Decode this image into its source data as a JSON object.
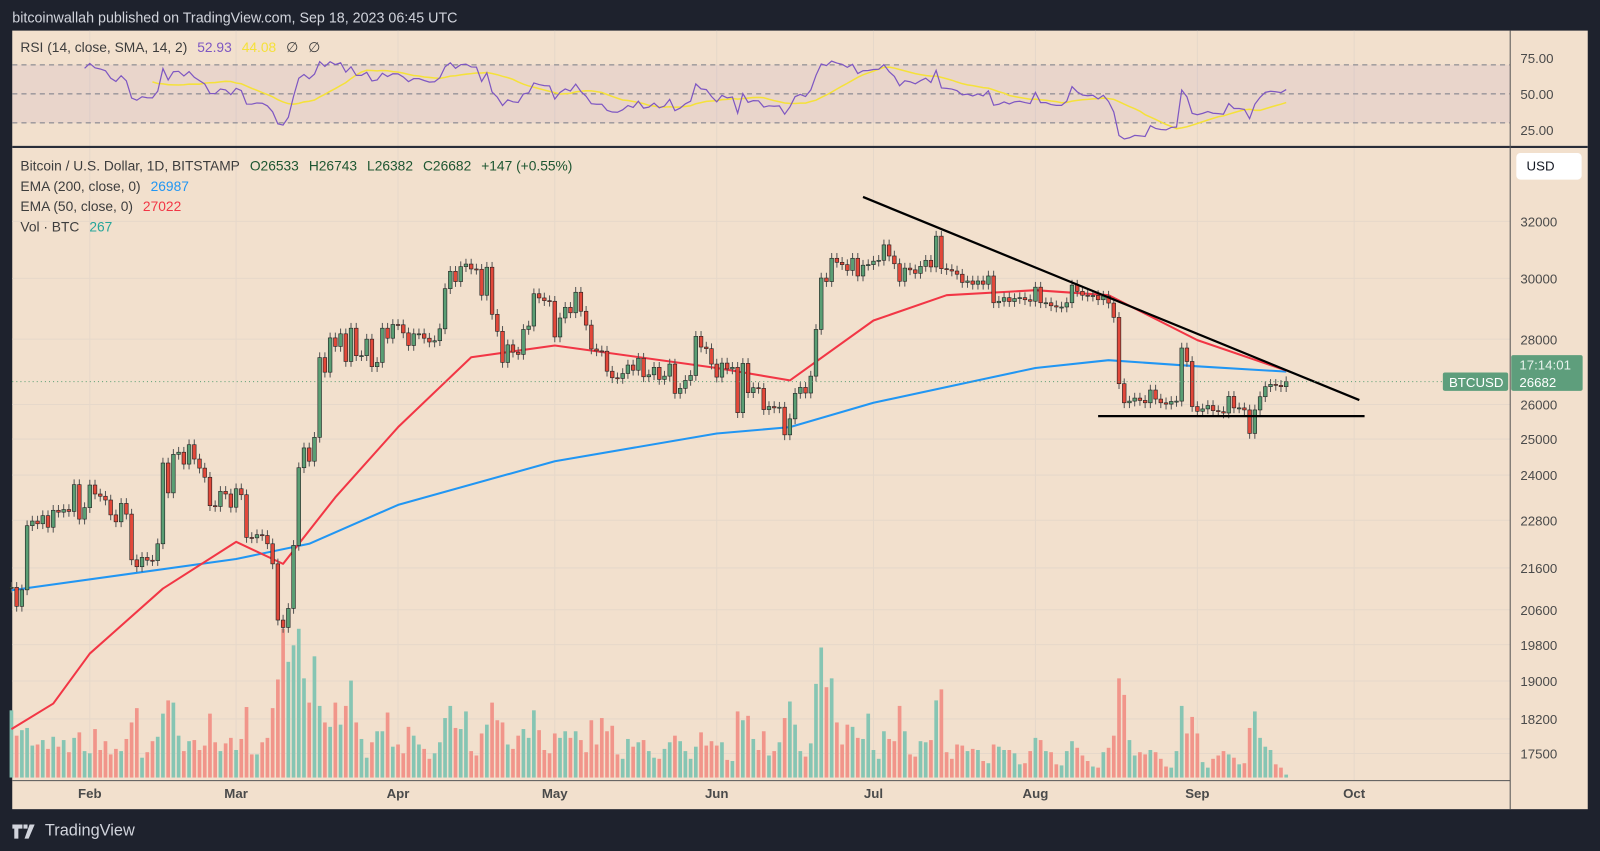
{
  "header": {
    "title": "bitcoinwallah published on TradingView.com, Sep 18, 2023 06:45 UTC"
  },
  "footer": {
    "brand": "TradingView"
  },
  "rsi_legend": {
    "label": "RSI (14, close, SMA, 14, 2)",
    "rsi": "52.93",
    "sma": "44.08",
    "extra1": "∅",
    "extra2": "∅"
  },
  "main_legend": {
    "symbol": "Bitcoin / U.S. Dollar, 1D, BITSTAMP",
    "open": "O26533",
    "high": "H26743",
    "low": "L26382",
    "close": "C26682",
    "change": "+147 (+0.55%)",
    "ema200_label": "EMA (200, close, 0)",
    "ema200_value": "26987",
    "ema50_label": "EMA (50, close, 0)",
    "ema50_value": "27022",
    "vol_label": "Vol · BTC",
    "vol_value": "267"
  },
  "currency_button": "USD",
  "price_label": {
    "symbol": "BTCUSD",
    "price": "26682",
    "countdown": "17:14:01"
  },
  "colors": {
    "background": "#f2e0cd",
    "up": "#5a9e74",
    "down": "#e2483a",
    "vol_up": "#86c5b3",
    "vol_down": "#f1958a",
    "ema200": "#2196f3",
    "ema50": "#f23645",
    "rsi": "#7e57c2",
    "rsi_sma": "#f5e13a",
    "trendline": "#000000"
  },
  "chart_data": {
    "type": "candlestick",
    "interval": "1D",
    "first_date": "2023-01-17",
    "y_scale": "log",
    "y_ticks": [
      32000,
      30000,
      28000,
      26000,
      25000,
      24000,
      22800,
      21600,
      20600,
      19800,
      19000,
      18200,
      17500
    ],
    "x_ticks": [
      {
        "label": "Feb",
        "date": "2023-02-01"
      },
      {
        "label": "Mar",
        "date": "2023-03-01"
      },
      {
        "label": "Apr",
        "date": "2023-04-01"
      },
      {
        "label": "May",
        "date": "2023-05-01"
      },
      {
        "label": "Jun",
        "date": "2023-06-01"
      },
      {
        "label": "Jul",
        "date": "2023-07-01"
      },
      {
        "label": "Aug",
        "date": "2023-08-01"
      },
      {
        "label": "Sep",
        "date": "2023-09-01"
      },
      {
        "label": "Oct",
        "date": "2023-10-01"
      }
    ],
    "rsi_ticks": [
      75,
      50,
      25
    ],
    "rsi_band": [
      30,
      70
    ],
    "close": [
      21130,
      20680,
      21070,
      22660,
      22780,
      22710,
      22920,
      22620,
      23060,
      23010,
      23080,
      23030,
      23740,
      22830,
      23130,
      23730,
      23490,
      23430,
      23330,
      22940,
      22760,
      23240,
      22960,
      21800,
      21630,
      21860,
      21790,
      21780,
      22200,
      24330,
      23520,
      24570,
      24630,
      24300,
      24840,
      24440,
      24190,
      23940,
      23180,
      23160,
      23560,
      23490,
      23140,
      23630,
      23470,
      22360,
      22350,
      22430,
      22410,
      22200,
      21700,
      20360,
      20190,
      20630,
      22160,
      24200,
      24750,
      24380,
      25050,
      27420,
      26970,
      28040,
      27770,
      28170,
      27300,
      28350,
      27480,
      27480,
      28000,
      27140,
      27270,
      28350,
      28030,
      28470,
      28460,
      28200,
      27800,
      28170,
      28170,
      28030,
      27910,
      27950,
      28330,
      29650,
      30240,
      29890,
      30400,
      30490,
      30320,
      30310,
      29430,
      30380,
      28800,
      28250,
      27270,
      27820,
      27590,
      27520,
      28310,
      28420,
      29480,
      29340,
      29250,
      29230,
      28070,
      28680,
      29030,
      28850,
      29530,
      28900,
      28450,
      27690,
      27630,
      27620,
      27000,
      26800,
      26780,
      26930,
      27190,
      27030,
      27400,
      26830,
      26890,
      27120,
      26750,
      26850,
      27220,
      26330,
      26480,
      26720,
      26870,
      28090,
      27750,
      27700,
      27220,
      26820,
      27250,
      27070,
      27120,
      25760,
      27240,
      26350,
      26500,
      26480,
      25850,
      25940,
      25900,
      25920,
      25120,
      25580,
      26330,
      26510,
      26340,
      26850,
      28310,
      30010,
      29890,
      30690,
      30550,
      30470,
      30270,
      30690,
      30080,
      30450,
      30470,
      30590,
      30620,
      31160,
      30770,
      30500,
      29900,
      30350,
      30290,
      30170,
      30410,
      30620,
      30390,
      31470,
      30330,
      30300,
      30250,
      30140,
      29860,
      29910,
      29800,
      29910,
      29800,
      30080,
      29180,
      29230,
      29350,
      29220,
      29320,
      29350,
      29280,
      29230,
      29700,
      29180,
      29180,
      29080,
      29040,
      29040,
      29180,
      29770,
      29560,
      29430,
      29400,
      29420,
      29280,
      29400,
      29170,
      28700,
      26620,
      26050,
      26100,
      26190,
      26120,
      26050,
      26430,
      26160,
      26050,
      26010,
      26090,
      26100,
      27720,
      27300,
      25940,
      25800,
      25870,
      25970,
      25820,
      25790,
      25750,
      26240,
      25900,
      25900,
      25840,
      25160,
      25840,
      26230,
      26530,
      26600,
      26570,
      26530,
      26682
    ],
    "volume": [
      6100,
      3800,
      4300,
      4500,
      2900,
      3000,
      3400,
      2600,
      3700,
      2800,
      3400,
      2300,
      3600,
      4100,
      2400,
      2200,
      4400,
      2500,
      3300,
      2100,
      2600,
      2400,
      3500,
      5000,
      6300,
      1800,
      2300,
      3300,
      3700,
      5800,
      7000,
      6800,
      3800,
      2400,
      3300,
      3400,
      2500,
      2900,
      5800,
      3200,
      2400,
      3100,
      3600,
      2500,
      3500,
      6400,
      2100,
      2100,
      3200,
      3600,
      6300,
      8900,
      13500,
      10500,
      12000,
      13500,
      9000,
      6800,
      11000,
      6500,
      5000,
      4600,
      6800,
      4800,
      6500,
      8800,
      5000,
      3500,
      1800,
      3200,
      4200,
      4200,
      5900,
      2800,
      3000,
      2200,
      4600,
      3800,
      3000,
      2600,
      1700,
      2200,
      3200,
      5400,
      6500,
      4500,
      4400,
      6000,
      2400,
      2000,
      4000,
      4800,
      6800,
      5200,
      5000,
      3000,
      2600,
      3800,
      4400,
      3600,
      6100,
      4300,
      2500,
      2200,
      4000,
      3600,
      4200,
      3600,
      4200,
      3400,
      2300,
      5200,
      3000,
      5400,
      4200,
      4700,
      2100,
      1700,
      3500,
      2800,
      3200,
      3400,
      2400,
      1800,
      1700,
      2600,
      3200,
      3800,
      3300,
      2400,
      1700,
      2800,
      4100,
      2900,
      3300,
      2900,
      3200,
      1600,
      1500,
      6000,
      5200,
      5600,
      3500,
      2500,
      4200,
      2000,
      2400,
      3200,
      5400,
      6900,
      4800,
      2400,
      1900,
      3100,
      8500,
      11800,
      8200,
      9000,
      5000,
      3000,
      4800,
      4600,
      3600,
      3500,
      5800,
      2500,
      1700,
      4200,
      3500,
      3300,
      6500,
      4200,
      2100,
      1900,
      3300,
      3200,
      3400,
      7000,
      8000,
      2300,
      1700,
      3000,
      2900,
      2400,
      2600,
      2500,
      1500,
      1300,
      3000,
      2800,
      2500,
      2500,
      2200,
      1200,
      1300,
      2400,
      3600,
      3400,
      2400,
      2300,
      1200,
      1100,
      2400,
      3300,
      2700,
      2000,
      1500,
      1000,
      900,
      2300,
      2700,
      3800,
      9000,
      7500,
      3400,
      2000,
      2300,
      2100,
      2500,
      2300,
      1700,
      1000,
      900,
      2400,
      6500,
      4000,
      5500,
      4000,
      1400,
      900,
      1700,
      2000,
      2400,
      2100,
      1800,
      1200,
      1300,
      4500,
      6000,
      3600,
      2800,
      2500,
      1200,
      900,
      267
    ],
    "ema200": [
      [
        "2023-01-17",
        21060
      ],
      [
        "2023-03-01",
        21820
      ],
      [
        "2023-03-15",
        22200
      ],
      [
        "2023-04-01",
        23200
      ],
      [
        "2023-05-01",
        24380
      ],
      [
        "2023-06-01",
        25160
      ],
      [
        "2023-06-15",
        25340
      ],
      [
        "2023-07-01",
        26050
      ],
      [
        "2023-08-01",
        27100
      ],
      [
        "2023-08-15",
        27340
      ],
      [
        "2023-09-01",
        27150
      ],
      [
        "2023-09-18",
        26987
      ]
    ],
    "ema50": [
      [
        "2023-01-17",
        17990
      ],
      [
        "2023-01-25",
        18520
      ],
      [
        "2023-02-01",
        19600
      ],
      [
        "2023-02-15",
        21100
      ],
      [
        "2023-03-01",
        22250
      ],
      [
        "2023-03-10",
        21700
      ],
      [
        "2023-03-20",
        23400
      ],
      [
        "2023-04-01",
        25340
      ],
      [
        "2023-04-15",
        27430
      ],
      [
        "2023-05-01",
        27800
      ],
      [
        "2023-06-01",
        27100
      ],
      [
        "2023-06-15",
        26720
      ],
      [
        "2023-07-01",
        28600
      ],
      [
        "2023-07-15",
        29430
      ],
      [
        "2023-08-01",
        29600
      ],
      [
        "2023-08-15",
        29430
      ],
      [
        "2023-09-01",
        27970
      ],
      [
        "2023-09-18",
        27022
      ]
    ],
    "trendlines": [
      {
        "name": "descending-resistance",
        "points": [
          [
            "2023-06-29",
            32900
          ],
          [
            "2023-10-02",
            26130
          ]
        ]
      },
      {
        "name": "horizontal-support",
        "points": [
          [
            "2023-08-13",
            25660
          ],
          [
            "2023-10-03",
            25660
          ]
        ]
      }
    ],
    "last_price": 26682
  }
}
